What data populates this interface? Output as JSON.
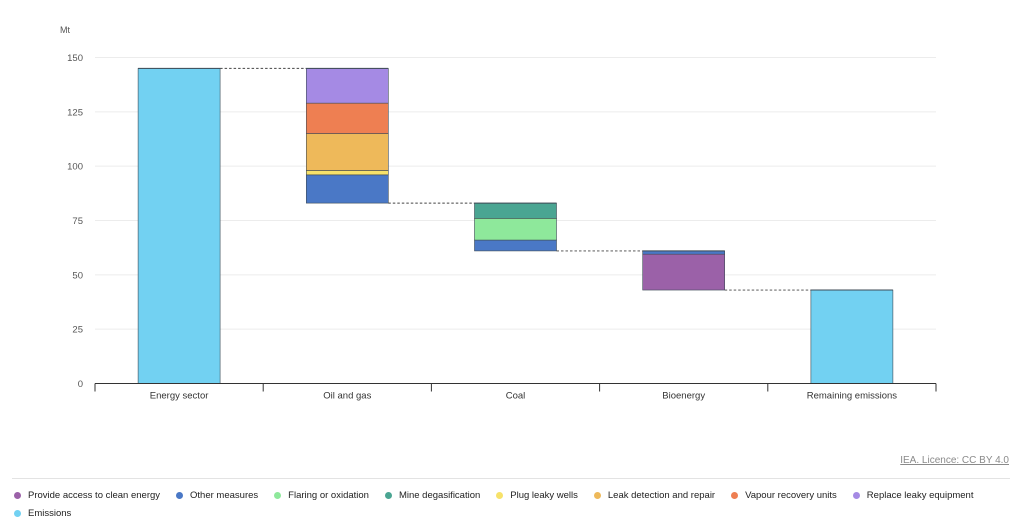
{
  "chart_data": {
    "type": "waterfall",
    "unit_label": "Mt",
    "ylim": [
      0,
      150
    ],
    "yticks": [
      0,
      25,
      50,
      75,
      100,
      125,
      150
    ],
    "grid": true,
    "legend_position": "bottom",
    "categories": [
      "Energy sector",
      "Oil and gas",
      "Coal",
      "Bioenergy",
      "Remaining emissions"
    ],
    "columns": [
      {
        "category": "Energy sector",
        "kind": "total",
        "segments": [
          {
            "series": "Emissions",
            "from": 0,
            "to": 145
          }
        ]
      },
      {
        "category": "Oil and gas",
        "kind": "reduction",
        "segments": [
          {
            "series": "Other measures",
            "from": 83,
            "to": 96
          },
          {
            "series": "Plug leaky wells",
            "from": 96,
            "to": 98
          },
          {
            "series": "Leak detection and repair",
            "from": 98,
            "to": 115
          },
          {
            "series": "Vapour recovery units",
            "from": 115,
            "to": 129
          },
          {
            "series": "Replace leaky equipment",
            "from": 129,
            "to": 145
          }
        ]
      },
      {
        "category": "Coal",
        "kind": "reduction",
        "segments": [
          {
            "series": "Other measures",
            "from": 61,
            "to": 66
          },
          {
            "series": "Flaring or oxidation",
            "from": 66,
            "to": 76
          },
          {
            "series": "Mine degasification",
            "from": 76,
            "to": 83
          }
        ]
      },
      {
        "category": "Bioenergy",
        "kind": "reduction",
        "segments": [
          {
            "series": "Provide access to clean energy",
            "from": 43,
            "to": 59.5
          },
          {
            "series": "Other measures",
            "from": 59.5,
            "to": 61
          }
        ]
      },
      {
        "category": "Remaining emissions",
        "kind": "total",
        "segments": [
          {
            "series": "Emissions",
            "from": 0,
            "to": 43
          }
        ]
      }
    ],
    "series": [
      {
        "name": "Provide access to clean energy",
        "color": "#9b61a8"
      },
      {
        "name": "Other measures",
        "color": "#4a78c6"
      },
      {
        "name": "Flaring or oxidation",
        "color": "#8ee89b"
      },
      {
        "name": "Mine degasification",
        "color": "#4aa592"
      },
      {
        "name": "Plug leaky wells",
        "color": "#f7e26a"
      },
      {
        "name": "Leak detection and repair",
        "color": "#eeb95a"
      },
      {
        "name": "Vapour recovery units",
        "color": "#ee7f52"
      },
      {
        "name": "Replace leaky equipment",
        "color": "#a58ae4"
      },
      {
        "name": "Emissions",
        "color": "#72d1f2"
      }
    ]
  },
  "credit": "IEA. Licence: CC BY 4.0"
}
